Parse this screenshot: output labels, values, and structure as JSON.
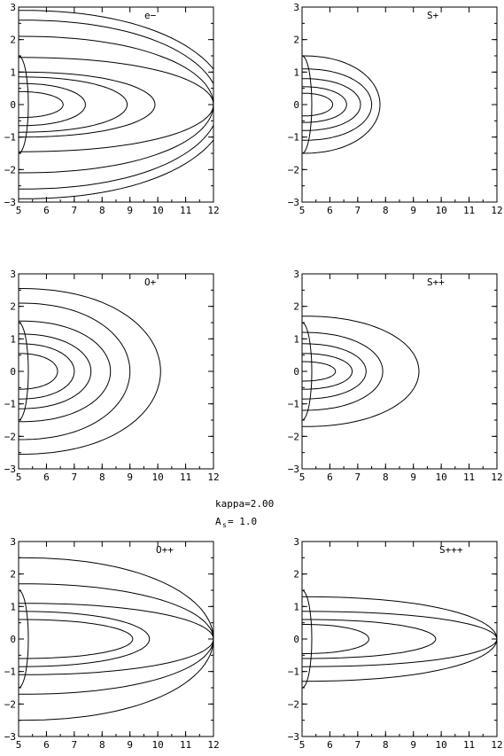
{
  "figure": {
    "annotation": {
      "kappa": "kappa=2.00",
      "as_prefix": "A",
      "as_sub": "s",
      "as_value": "=  1.0"
    }
  },
  "chart_data": [
    {
      "type": "contour",
      "title": "e−",
      "x_ticks": [
        "5",
        "6",
        "7",
        "8",
        "9",
        "10",
        "11",
        "12"
      ],
      "y_ticks": [
        "3",
        "2",
        "1",
        "0",
        "−1",
        "−2",
        "−3"
      ],
      "xlim": [
        5,
        12
      ],
      "ylim": [
        -3,
        3
      ],
      "levels": [
        {
          "tip": 12.5,
          "halfwidth": 2.9
        },
        {
          "tip": 12.2,
          "halfwidth": 2.6
        },
        {
          "tip": 12.0,
          "halfwidth": 2.1
        },
        {
          "tip": 12.0,
          "halfwidth": 1.45
        },
        {
          "tip": 9.9,
          "halfwidth": 1.0
        },
        {
          "tip": 8.9,
          "halfwidth": 0.85
        },
        {
          "tip": 7.4,
          "halfwidth": 0.65
        },
        {
          "tip": 6.6,
          "halfwidth": 0.4
        }
      ]
    },
    {
      "type": "contour",
      "title": "S+",
      "x_ticks": [
        "5",
        "6",
        "7",
        "8",
        "9",
        "10",
        "11",
        "12"
      ],
      "y_ticks": [
        "3",
        "2",
        "1",
        "0",
        "−1",
        "−2",
        "−3"
      ],
      "xlim": [
        5,
        12
      ],
      "ylim": [
        -3,
        3
      ],
      "levels": [
        {
          "tip": 7.8,
          "halfwidth": 1.5
        },
        {
          "tip": 7.5,
          "halfwidth": 1.1
        },
        {
          "tip": 7.1,
          "halfwidth": 0.8
        },
        {
          "tip": 6.6,
          "halfwidth": 0.55
        },
        {
          "tip": 6.1,
          "halfwidth": 0.35
        }
      ]
    },
    {
      "type": "contour",
      "title": "O+",
      "x_ticks": [
        "5",
        "6",
        "7",
        "8",
        "9",
        "10",
        "11",
        "12"
      ],
      "y_ticks": [
        "3",
        "2",
        "1",
        "0",
        "−1",
        "−2",
        "−3"
      ],
      "xlim": [
        5,
        12
      ],
      "ylim": [
        -3,
        3
      ],
      "levels": [
        {
          "tip": 10.1,
          "halfwidth": 2.55
        },
        {
          "tip": 9.0,
          "halfwidth": 2.1
        },
        {
          "tip": 8.3,
          "halfwidth": 1.55
        },
        {
          "tip": 7.6,
          "halfwidth": 1.15
        },
        {
          "tip": 7.0,
          "halfwidth": 0.85
        },
        {
          "tip": 6.4,
          "halfwidth": 0.55
        }
      ]
    },
    {
      "type": "contour",
      "title": "S++",
      "x_ticks": [
        "5",
        "6",
        "7",
        "8",
        "9",
        "10",
        "11",
        "12"
      ],
      "y_ticks": [
        "3",
        "2",
        "1",
        "0",
        "−1",
        "−2",
        "−3"
      ],
      "xlim": [
        5,
        12
      ],
      "ylim": [
        -3,
        3
      ],
      "levels": [
        {
          "tip": 9.2,
          "halfwidth": 1.7
        },
        {
          "tip": 7.9,
          "halfwidth": 1.2
        },
        {
          "tip": 7.3,
          "halfwidth": 0.85
        },
        {
          "tip": 6.8,
          "halfwidth": 0.55
        },
        {
          "tip": 6.2,
          "halfwidth": 0.3
        }
      ]
    },
    {
      "type": "contour",
      "title": "O++",
      "x_ticks": [
        "5",
        "6",
        "7",
        "8",
        "9",
        "10",
        "11",
        "12"
      ],
      "y_ticks": [
        "3",
        "2",
        "1",
        "0",
        "−1",
        "−2",
        "−3"
      ],
      "xlim": [
        5,
        12
      ],
      "ylim": [
        -3,
        3
      ],
      "levels": [
        {
          "tip": 12.0,
          "halfwidth": 2.5
        },
        {
          "tip": 12.0,
          "halfwidth": 1.7
        },
        {
          "tip": 12.0,
          "halfwidth": 1.1
        },
        {
          "tip": 9.7,
          "halfwidth": 0.85
        },
        {
          "tip": 9.1,
          "halfwidth": 0.6
        }
      ]
    },
    {
      "type": "contour",
      "title": "S+++",
      "x_ticks": [
        "5",
        "6",
        "7",
        "8",
        "9",
        "10",
        "11",
        "12"
      ],
      "y_ticks": [
        "3",
        "2",
        "1",
        "0",
        "−1",
        "−2",
        "−3"
      ],
      "xlim": [
        5,
        12
      ],
      "ylim": [
        -3,
        3
      ],
      "levels": [
        {
          "tip": 12.0,
          "halfwidth": 1.3
        },
        {
          "tip": 12.0,
          "halfwidth": 0.85
        },
        {
          "tip": 9.8,
          "halfwidth": 0.6
        },
        {
          "tip": 7.4,
          "halfwidth": 0.45
        }
      ]
    }
  ]
}
